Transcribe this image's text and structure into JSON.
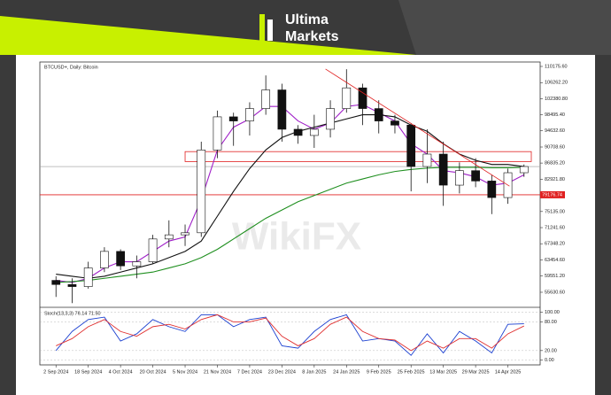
{
  "brand": {
    "line1": "Ultima",
    "line2": "Markets"
  },
  "watermark": "WikiFX",
  "chart_data": [
    {
      "type": "candlestick",
      "title": "BTCUSD+, Daily: Bitcoin",
      "xlim": [
        -1,
        30
      ],
      "xticks": [
        {
          "value": 0,
          "label": "2 Sep 2024"
        },
        {
          "value": 2,
          "label": "18 Sep 2024"
        },
        {
          "value": 4,
          "label": "4 Oct 2024"
        },
        {
          "value": 6,
          "label": "20 Oct 2024"
        },
        {
          "value": 8,
          "label": "5 Nov 2024"
        },
        {
          "value": 10,
          "label": "21 Nov 2024"
        },
        {
          "value": 12,
          "label": "7 Dec 2024"
        },
        {
          "value": 14,
          "label": "23 Dec 2024"
        },
        {
          "value": 16,
          "label": "8 Jan 2025"
        },
        {
          "value": 18,
          "label": "24 Jan 2025"
        },
        {
          "value": 20,
          "label": "9 Feb 2025"
        },
        {
          "value": 22,
          "label": "25 Feb 2025"
        },
        {
          "value": 24,
          "label": "13 Mar 2025"
        },
        {
          "value": 26,
          "label": "29 Mar 2025"
        },
        {
          "value": 28,
          "label": "14 Apr 2025"
        }
      ],
      "ylim": [
        52420,
        111245
      ],
      "yticks": [
        {
          "value": 110175.6,
          "label": "110175.60"
        },
        {
          "value": 106262.2,
          "label": "106262.20"
        },
        {
          "value": 102380.8,
          "label": "102380.80"
        },
        {
          "value": 98495.4,
          "label": "98495.40"
        },
        {
          "value": 94632.6,
          "label": "94632.60"
        },
        {
          "value": 90708.6,
          "label": "90708.60"
        },
        {
          "value": 86835.2,
          "label": "86835.20"
        },
        {
          "value": 82921.8,
          "label": "82921.80"
        },
        {
          "value": 79020.4,
          "label": "79020.40"
        },
        {
          "value": 75135,
          "label": "75135.00"
        },
        {
          "value": 71241.6,
          "label": "71241.60"
        },
        {
          "value": 67348.2,
          "label": "67348.20"
        },
        {
          "value": 63454.6,
          "label": "63454.60"
        },
        {
          "value": 59551.2,
          "label": "59551.20"
        },
        {
          "value": 55630.6,
          "label": "55630.60"
        }
      ],
      "open": [
        58500,
        57500,
        57000,
        61500,
        65500,
        62000,
        63000,
        68500,
        69500,
        70000,
        90000,
        98000,
        97000,
        100000,
        104500,
        95000,
        93500,
        95000,
        100000,
        105000,
        100000,
        97000,
        96000,
        86000,
        89000,
        81500,
        85000,
        82500,
        78500,
        84500
      ],
      "high": [
        59500,
        59000,
        63000,
        66500,
        66000,
        64500,
        69500,
        73000,
        72000,
        92000,
        99500,
        99000,
        101500,
        108000,
        106000,
        96000,
        98500,
        102000,
        109500,
        106000,
        102000,
        98500,
        96500,
        95000,
        92000,
        87000,
        88000,
        84000,
        85500,
        86500
      ],
      "low": [
        54500,
        53000,
        56500,
        60500,
        61000,
        59000,
        62500,
        66500,
        66800,
        69000,
        88000,
        91000,
        93500,
        98500,
        92000,
        91500,
        90500,
        93000,
        99000,
        96000,
        94000,
        94000,
        80000,
        82000,
        76500,
        79500,
        81000,
        74500,
        77000,
        83500
      ],
      "close": [
        57500,
        57000,
        61500,
        65500,
        62000,
        63000,
        68500,
        69500,
        70000,
        90000,
        98000,
        97000,
        100000,
        104500,
        95000,
        93500,
        95000,
        100000,
        105000,
        100000,
        97000,
        96000,
        86000,
        89000,
        81500,
        85000,
        82500,
        78500,
        84500,
        86000
      ],
      "series": [
        {
          "color": "#a020c8",
          "values": [
            58500,
            58000,
            59000,
            61500,
            63000,
            63000,
            65500,
            68000,
            69000,
            78000,
            90000,
            95500,
            97500,
            100500,
            100500,
            97000,
            95000,
            96500,
            100500,
            101000,
            99000,
            97000,
            91500,
            89000,
            85000,
            84500,
            83500,
            81500,
            82000,
            84000
          ]
        },
        {
          "color": "#111111",
          "values": [
            60000,
            59500,
            59000,
            59500,
            60500,
            61500,
            62500,
            64000,
            65500,
            68000,
            74000,
            80000,
            85500,
            90000,
            93000,
            94500,
            95500,
            96500,
            97500,
            98500,
            98500,
            98000,
            96000,
            94500,
            91500,
            89000,
            87500,
            86500,
            86500,
            86000
          ]
        },
        {
          "color": "#1f8f1f",
          "values": [
            58000,
            58200,
            58500,
            59000,
            59500,
            60000,
            60500,
            61500,
            62500,
            64000,
            66000,
            68500,
            71000,
            73500,
            75500,
            77500,
            79000,
            80500,
            82000,
            83000,
            84000,
            84800,
            85300,
            85600,
            85800,
            85800,
            85800,
            85700,
            85700,
            85800
          ]
        }
      ],
      "support_line": {
        "value": 79176.74,
        "color": "#e02020"
      },
      "resistance_zone": {
        "values": [
          87200,
          89600
        ],
        "color": "#e02020"
      },
      "trendline": {
        "x": [
          16.7,
          28.1
        ],
        "y": [
          109540,
          81250
        ],
        "color": "#e02020"
      }
    },
    {
      "type": "line",
      "title": "Stoch(13,3,3) 76.14 71.50",
      "xlim": [
        -1,
        30
      ],
      "ylim": [
        -10,
        105
      ],
      "yticks": [
        {
          "value": 100,
          "label": "100.00"
        },
        {
          "value": 80,
          "label": "80.00"
        },
        {
          "value": 20,
          "label": "20.00"
        },
        {
          "value": 0,
          "label": "0.00"
        }
      ],
      "series": [
        {
          "color": "#1a3fd0",
          "values": [
            20,
            60,
            85,
            90,
            40,
            55,
            85,
            70,
            60,
            95,
            95,
            70,
            85,
            90,
            30,
            25,
            60,
            85,
            95,
            40,
            45,
            40,
            10,
            55,
            15,
            60,
            40,
            15,
            75,
            76.14
          ]
        },
        {
          "color": "#e03030",
          "values": [
            30,
            45,
            70,
            85,
            60,
            50,
            70,
            75,
            65,
            85,
            95,
            80,
            80,
            88,
            50,
            30,
            45,
            75,
            90,
            60,
            45,
            42,
            20,
            40,
            25,
            45,
            45,
            25,
            55,
            71.5
          ]
        }
      ]
    }
  ]
}
